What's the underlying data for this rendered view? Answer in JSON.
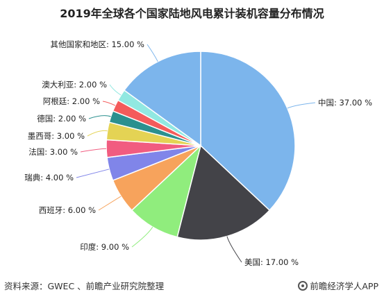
{
  "chart_data": {
    "type": "pie",
    "title": "2019年全球各个国家陆地风电累计装机容量分布情况",
    "slices": [
      {
        "label": "中国",
        "value": 37.0,
        "display": "中国: 37.00 %",
        "color": "#7cb5ec"
      },
      {
        "label": "美国",
        "value": 17.0,
        "display": "美国: 17.00 %",
        "color": "#434348"
      },
      {
        "label": "印度",
        "value": 9.0,
        "display": "印度: 9.00 %",
        "color": "#90ed7d"
      },
      {
        "label": "西班牙",
        "value": 6.0,
        "display": "西班牙: 6.00 %",
        "color": "#f7a35c"
      },
      {
        "label": "瑞典",
        "value": 4.0,
        "display": "瑞典: 4.00 %",
        "color": "#8085e9"
      },
      {
        "label": "法国",
        "value": 3.0,
        "display": "法国: 3.00 %",
        "color": "#f15c80"
      },
      {
        "label": "墨西哥",
        "value": 3.0,
        "display": "墨西哥: 3.00 %",
        "color": "#e4d354"
      },
      {
        "label": "德国",
        "value": 2.0,
        "display": "德国: 2.00 %",
        "color": "#2b908f"
      },
      {
        "label": "阿根廷",
        "value": 2.0,
        "display": "阿根廷: 2.00 %",
        "color": "#f45b5b"
      },
      {
        "label": "澳大利亚",
        "value": 2.0,
        "display": "澳大利亚: 2.00 %",
        "color": "#91e8e1"
      },
      {
        "label": "其他国家和地区",
        "value": 15.0,
        "display": "其他国家和地区: 15.00 %",
        "color": "#7cb5ec"
      }
    ]
  },
  "footer": {
    "source": "资料来源：GWEC 、前瞻产业研究院整理",
    "brand": "前瞻经济学人APP"
  }
}
